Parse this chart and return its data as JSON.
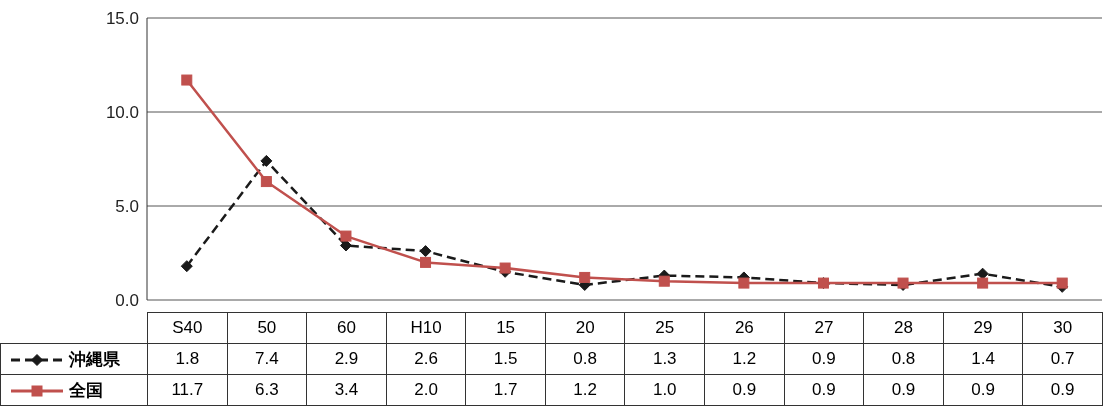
{
  "chart_data": {
    "type": "line",
    "categories": [
      "S40",
      "50",
      "60",
      "H10",
      "15",
      "20",
      "25",
      "26",
      "27",
      "28",
      "29",
      "30"
    ],
    "series": [
      {
        "name": "沖縄県",
        "color": "#1a1a1a",
        "marker": "diamond",
        "line_style": "dashed",
        "values": [
          1.8,
          7.4,
          2.9,
          2.6,
          1.5,
          0.8,
          1.3,
          1.2,
          0.9,
          0.8,
          1.4,
          0.7
        ],
        "value_labels": [
          "1.8",
          "7.4",
          "2.9",
          "2.6",
          "1.5",
          "0.8",
          "1.3",
          "1.2",
          "0.9",
          "0.8",
          "1.4",
          "0.7"
        ]
      },
      {
        "name": "全国",
        "color": "#c0504d",
        "marker": "square",
        "line_style": "solid",
        "values": [
          11.7,
          6.3,
          3.4,
          2.0,
          1.7,
          1.2,
          1.0,
          0.9,
          0.9,
          0.9,
          0.9,
          0.9
        ],
        "value_labels": [
          "11.7",
          "6.3",
          "3.4",
          "2.0",
          "1.7",
          "1.2",
          "1.0",
          "0.9",
          "0.9",
          "0.9",
          "0.9",
          "0.9"
        ]
      }
    ],
    "ylim": [
      0,
      15
    ],
    "yticks": [
      {
        "value": 0,
        "label": "0.0"
      },
      {
        "value": 5,
        "label": "5.0"
      },
      {
        "value": 10,
        "label": "10.0"
      },
      {
        "value": 15,
        "label": "15.0"
      }
    ],
    "grid": "y",
    "legend": "bottom left"
  }
}
